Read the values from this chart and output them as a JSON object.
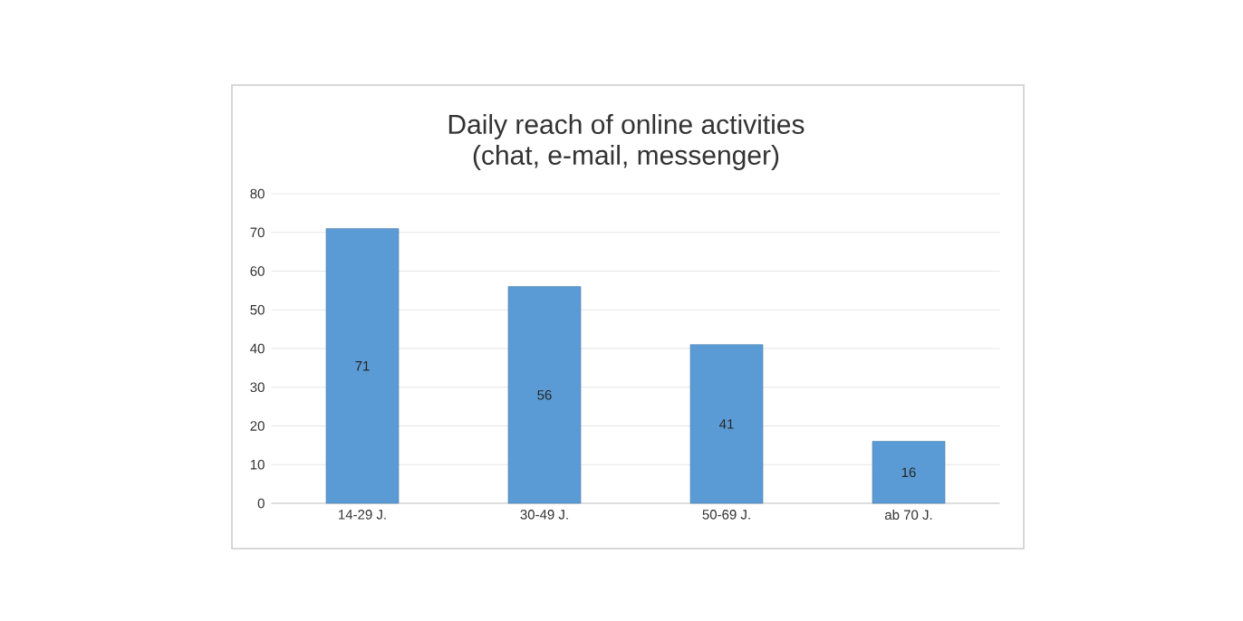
{
  "chart_data": {
    "type": "bar",
    "title": "Daily reach of online activities",
    "subtitle": "(chat, e-mail, messenger)",
    "categories": [
      "14-29 J.",
      "30-49 J.",
      "50-69 J.",
      "ab 70 J."
    ],
    "values": [
      71,
      56,
      41,
      16
    ],
    "color": "#5b9bd5",
    "ylim": [
      0,
      80
    ],
    "yticks": [
      0,
      10,
      20,
      30,
      40,
      50,
      60,
      70,
      80
    ],
    "grid": "y",
    "data_labels": true
  }
}
